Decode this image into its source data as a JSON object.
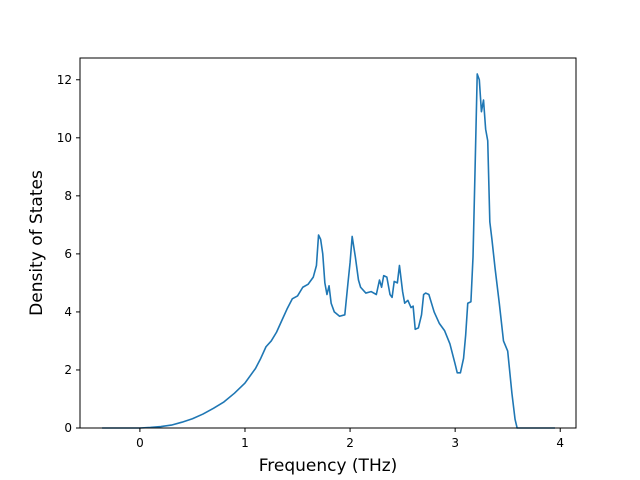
{
  "chart_data": {
    "type": "line",
    "title": "",
    "xlabel": "Frequency (THz)",
    "ylabel": "Density of States",
    "xlim": [
      -0.57,
      4.15
    ],
    "ylim": [
      0,
      12.75
    ],
    "xticks": [
      0,
      1,
      2,
      3,
      4
    ],
    "yticks": [
      0,
      2,
      4,
      6,
      8,
      10,
      12
    ],
    "grid": false,
    "legend": "none",
    "series": [
      {
        "color": "#1f77b4",
        "x": [
          -0.36,
          -0.2,
          0.0,
          0.1,
          0.2,
          0.3,
          0.4,
          0.5,
          0.6,
          0.7,
          0.8,
          0.9,
          1.0,
          1.1,
          1.15,
          1.2,
          1.25,
          1.3,
          1.35,
          1.4,
          1.45,
          1.5,
          1.55,
          1.6,
          1.65,
          1.68,
          1.7,
          1.72,
          1.74,
          1.76,
          1.78,
          1.8,
          1.82,
          1.85,
          1.9,
          1.95,
          1.98,
          2.0,
          2.02,
          2.05,
          2.08,
          2.1,
          2.15,
          2.2,
          2.25,
          2.28,
          2.3,
          2.32,
          2.35,
          2.38,
          2.4,
          2.42,
          2.45,
          2.47,
          2.5,
          2.52,
          2.55,
          2.58,
          2.6,
          2.62,
          2.65,
          2.68,
          2.7,
          2.72,
          2.75,
          2.8,
          2.85,
          2.9,
          2.95,
          3.0,
          3.02,
          3.05,
          3.08,
          3.1,
          3.12,
          3.15,
          3.17,
          3.19,
          3.21,
          3.23,
          3.25,
          3.27,
          3.29,
          3.31,
          3.33,
          3.35,
          3.38,
          3.42,
          3.46,
          3.5,
          3.54,
          3.57,
          3.59,
          3.6,
          3.7,
          3.8,
          3.95
        ],
        "y": [
          0.0,
          0.0,
          0.0,
          0.02,
          0.05,
          0.1,
          0.2,
          0.32,
          0.48,
          0.68,
          0.9,
          1.2,
          1.55,
          2.05,
          2.4,
          2.8,
          3.0,
          3.3,
          3.7,
          4.1,
          4.45,
          4.55,
          4.85,
          4.95,
          5.2,
          5.6,
          6.65,
          6.5,
          6.0,
          5.0,
          4.6,
          4.9,
          4.3,
          4.0,
          3.85,
          3.9,
          5.0,
          5.7,
          6.6,
          5.9,
          5.1,
          4.85,
          4.65,
          4.7,
          4.6,
          5.1,
          4.85,
          5.25,
          5.2,
          4.6,
          4.5,
          5.05,
          5.0,
          5.6,
          4.7,
          4.3,
          4.4,
          4.15,
          4.2,
          3.4,
          3.45,
          3.9,
          4.6,
          4.65,
          4.6,
          4.0,
          3.6,
          3.35,
          2.9,
          2.2,
          1.9,
          1.9,
          2.4,
          3.2,
          4.3,
          4.35,
          5.9,
          9.0,
          12.2,
          12.0,
          10.9,
          11.3,
          10.3,
          9.9,
          7.1,
          6.5,
          5.5,
          4.3,
          3.0,
          2.65,
          1.2,
          0.3,
          0.0,
          0.0,
          0.0,
          0.0,
          0.0
        ]
      }
    ]
  }
}
